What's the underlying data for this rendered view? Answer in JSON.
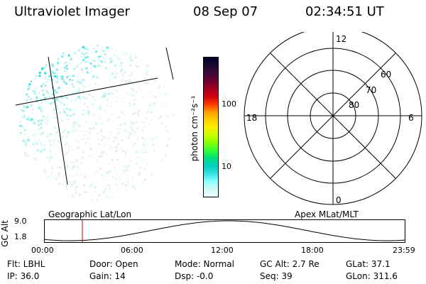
{
  "header": {
    "instrument": "Ultraviolet Imager",
    "date": "08 Sep 07",
    "time": "02:34:51 UT"
  },
  "colorbar": {
    "unit_label": "photon cm⁻²s⁻¹",
    "ticks": [
      "100",
      "10"
    ],
    "colors": [
      "#000033",
      "#1a0a2e",
      "#3d0a3a",
      "#6b0033",
      "#a00020",
      "#cc0010",
      "#ff3300",
      "#ff9900",
      "#ffcc00",
      "#ffee00",
      "#ccff00",
      "#88ff00",
      "#33ff33",
      "#00e07a",
      "#00d0c0",
      "#33e0e0",
      "#88ffff",
      "#d0f8f8",
      "#f0ffff"
    ]
  },
  "polar_plot": {
    "mlt_labels": {
      "top": "12",
      "bottom": "0",
      "left": "18",
      "right": "6"
    },
    "lat_labels": [
      "60",
      "70",
      "80"
    ]
  },
  "altitude_panel": {
    "ylabel": "GC Alt",
    "yticks": [
      "9.0",
      "1.8"
    ],
    "left_title": "Geographic Lat/Lon",
    "right_title": "Apex MLat/MLT",
    "xticks": [
      "00:00",
      "06:00",
      "12:00",
      "18:00",
      "23:59"
    ],
    "current_time_color": "#cc0000"
  },
  "info": {
    "row1": {
      "filter": "Flt: LBHL",
      "door": "Door: Open",
      "mode": "Mode: Normal",
      "gc_alt": "GC Alt: 2.7 Re",
      "glat": "GLat:  37.1"
    },
    "row2": {
      "ip": "IP: 36.0",
      "gain": "Gain: 14",
      "dsp": "Dsp:   -0.0",
      "seq": "Seq: 39",
      "glon": "GLon: 311.6"
    }
  }
}
